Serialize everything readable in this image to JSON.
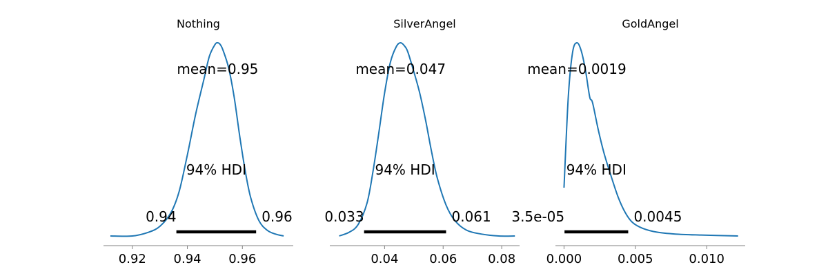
{
  "chart_data": [
    {
      "type": "density",
      "title": "Nothing",
      "xlabel": "",
      "ylabel": "",
      "xlim": [
        0.9095,
        0.9785
      ],
      "ticks": [
        0.92,
        0.94,
        0.96
      ],
      "tick_labels": [
        "0.92",
        "0.94",
        "0.96"
      ],
      "curve_x": [
        0.912,
        0.92,
        0.926,
        0.93,
        0.934,
        0.937,
        0.94,
        0.943,
        0.946,
        0.948,
        0.95,
        0.951,
        0.952,
        0.953,
        0.955,
        0.957,
        0.959,
        0.961,
        0.963,
        0.966,
        0.969,
        0.972,
        0.975
      ],
      "curve_y": [
        0.0,
        0.0,
        0.02,
        0.05,
        0.12,
        0.23,
        0.42,
        0.63,
        0.81,
        0.93,
        0.99,
        1.0,
        0.99,
        0.96,
        0.87,
        0.72,
        0.52,
        0.34,
        0.2,
        0.08,
        0.03,
        0.01,
        0.0
      ],
      "mean_label": "mean=0.95",
      "hdi_label": "94% HDI",
      "hdi": [
        0.936,
        0.965
      ],
      "hdi_low_label": "0.94",
      "hdi_high_label": "0.96"
    },
    {
      "type": "density",
      "title": "SilverAngel",
      "xlabel": "",
      "ylabel": "",
      "xlim": [
        0.0213,
        0.0861
      ],
      "ticks": [
        0.04,
        0.06,
        0.08
      ],
      "tick_labels": [
        "0.04",
        "0.06",
        "0.08"
      ],
      "curve_x": [
        0.0245,
        0.028,
        0.031,
        0.034,
        0.036,
        0.038,
        0.04,
        0.042,
        0.044,
        0.0455,
        0.047,
        0.048,
        0.05,
        0.052,
        0.054,
        0.056,
        0.058,
        0.061,
        0.064,
        0.068,
        0.073,
        0.079,
        0.0845
      ],
      "curve_y": [
        0.0,
        0.02,
        0.06,
        0.17,
        0.33,
        0.53,
        0.74,
        0.9,
        0.98,
        1.0,
        0.98,
        0.95,
        0.85,
        0.74,
        0.6,
        0.44,
        0.3,
        0.16,
        0.08,
        0.03,
        0.01,
        0.0,
        0.0
      ],
      "mean_label": "mean=0.047",
      "hdi_label": "94% HDI",
      "hdi": [
        0.033,
        0.061
      ],
      "hdi_low_label": "0.033",
      "hdi_high_label": "0.061"
    },
    {
      "type": "density",
      "title": "GoldAngel",
      "xlabel": "",
      "ylabel": "",
      "xlim": [
        -0.0006,
        0.0127
      ],
      "ticks": [
        0.0,
        0.005,
        0.01
      ],
      "tick_labels": [
        "0.000",
        "0.005",
        "0.010"
      ],
      "curve_x": [
        0.0,
        0.0003,
        0.0006,
        0.0009,
        0.0012,
        0.0015,
        0.0018,
        0.002,
        0.0024,
        0.0028,
        0.0033,
        0.0038,
        0.0043,
        0.0048,
        0.0055,
        0.0065,
        0.0078,
        0.0095,
        0.0122
      ],
      "curve_y": [
        0.25,
        0.72,
        0.95,
        1.0,
        0.96,
        0.86,
        0.72,
        0.69,
        0.55,
        0.43,
        0.31,
        0.2,
        0.12,
        0.07,
        0.04,
        0.02,
        0.01,
        0.005,
        0.0
      ],
      "mean_label": "mean=0.0019",
      "hdi_label": "94% HDI",
      "hdi": [
        3.5e-05,
        0.0045
      ],
      "hdi_low_label": "3.5e-05",
      "hdi_high_label": "0.0045"
    }
  ],
  "colors": {
    "curve": "#1f77b4",
    "hdi_bar": "#000000",
    "axis": "#808080",
    "text": "#000000"
  }
}
